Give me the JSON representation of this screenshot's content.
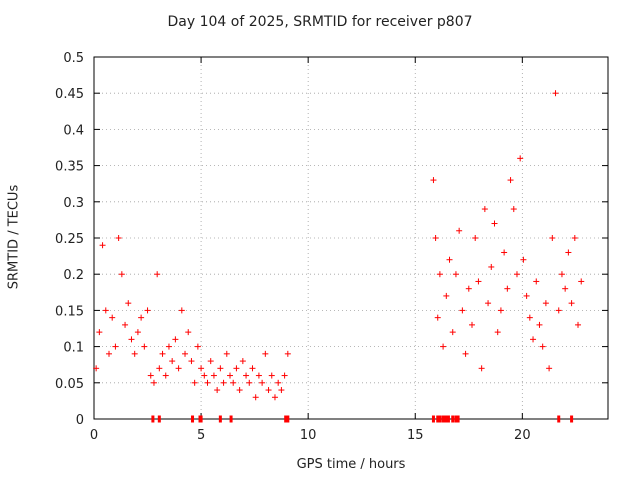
{
  "chart_data": {
    "type": "scatter",
    "title": "Day 104 of 2025, SRMTID for receiver p807",
    "xlabel": "GPS time / hours",
    "ylabel": "SRMTID / TECUs",
    "xlim": [
      0,
      24
    ],
    "ylim": [
      0,
      0.5
    ],
    "x_ticks": [
      0,
      5,
      10,
      15,
      20
    ],
    "y_ticks": [
      0,
      0.05,
      0.1,
      0.15,
      0.2,
      0.25,
      0.3,
      0.35,
      0.4,
      0.45,
      0.5
    ],
    "grid": true,
    "marker": "+",
    "color": "#ff0000",
    "series": [
      {
        "name": "SRMTID",
        "x": [
          0.1,
          0.25,
          0.4,
          0.55,
          0.7,
          0.85,
          1.0,
          1.15,
          1.3,
          1.45,
          1.6,
          1.75,
          1.9,
          2.05,
          2.2,
          2.35,
          2.5,
          2.65,
          2.8,
          2.95,
          3.05,
          3.2,
          3.35,
          3.5,
          3.65,
          3.8,
          3.95,
          4.1,
          4.25,
          4.4,
          4.55,
          4.7,
          4.85,
          5.0,
          5.15,
          5.3,
          5.45,
          5.6,
          5.75,
          5.9,
          6.05,
          6.2,
          6.35,
          6.5,
          6.65,
          6.8,
          6.95,
          7.1,
          7.25,
          7.4,
          7.55,
          7.7,
          7.85,
          8.0,
          8.15,
          8.3,
          8.45,
          8.6,
          8.75,
          8.9,
          9.05,
          15.85,
          15.95,
          16.05,
          16.15,
          16.3,
          16.45,
          16.6,
          16.75,
          16.9,
          17.05,
          17.2,
          17.35,
          17.5,
          17.65,
          17.8,
          17.95,
          18.1,
          18.25,
          18.4,
          18.55,
          18.7,
          18.85,
          19.0,
          19.15,
          19.3,
          19.45,
          19.6,
          19.75,
          19.9,
          20.05,
          20.2,
          20.35,
          20.5,
          20.65,
          20.8,
          20.95,
          21.1,
          21.25,
          21.4,
          21.55,
          21.7,
          21.85,
          22.0,
          22.15,
          22.3,
          22.45,
          22.6,
          22.75
        ],
        "y": [
          0.07,
          0.12,
          0.24,
          0.15,
          0.09,
          0.14,
          0.1,
          0.25,
          0.2,
          0.13,
          0.16,
          0.11,
          0.09,
          0.12,
          0.14,
          0.1,
          0.15,
          0.06,
          0.05,
          0.2,
          0.07,
          0.09,
          0.06,
          0.1,
          0.08,
          0.11,
          0.07,
          0.15,
          0.09,
          0.12,
          0.08,
          0.05,
          0.1,
          0.07,
          0.06,
          0.05,
          0.08,
          0.06,
          0.04,
          0.07,
          0.05,
          0.09,
          0.06,
          0.05,
          0.07,
          0.04,
          0.08,
          0.06,
          0.05,
          0.07,
          0.03,
          0.06,
          0.05,
          0.09,
          0.04,
          0.06,
          0.03,
          0.05,
          0.04,
          0.06,
          0.09,
          0.33,
          0.25,
          0.14,
          0.2,
          0.1,
          0.17,
          0.22,
          0.12,
          0.2,
          0.26,
          0.15,
          0.09,
          0.18,
          0.13,
          0.25,
          0.19,
          0.07,
          0.29,
          0.16,
          0.21,
          0.27,
          0.12,
          0.15,
          0.23,
          0.18,
          0.33,
          0.29,
          0.2,
          0.36,
          0.22,
          0.17,
          0.14,
          0.11,
          0.19,
          0.13,
          0.1,
          0.16,
          0.07,
          0.25,
          0.45,
          0.15,
          0.2,
          0.18,
          0.23,
          0.16,
          0.25,
          0.13,
          0.19
        ]
      }
    ],
    "axis_markers": [
      2.75,
      3.05,
      4.6,
      4.95,
      5.0,
      5.9,
      6.4,
      8.95,
      9.05,
      15.85,
      16.05,
      16.15,
      16.3,
      16.4,
      16.45,
      16.55,
      16.75,
      16.9,
      17.0,
      21.7,
      22.3
    ]
  }
}
